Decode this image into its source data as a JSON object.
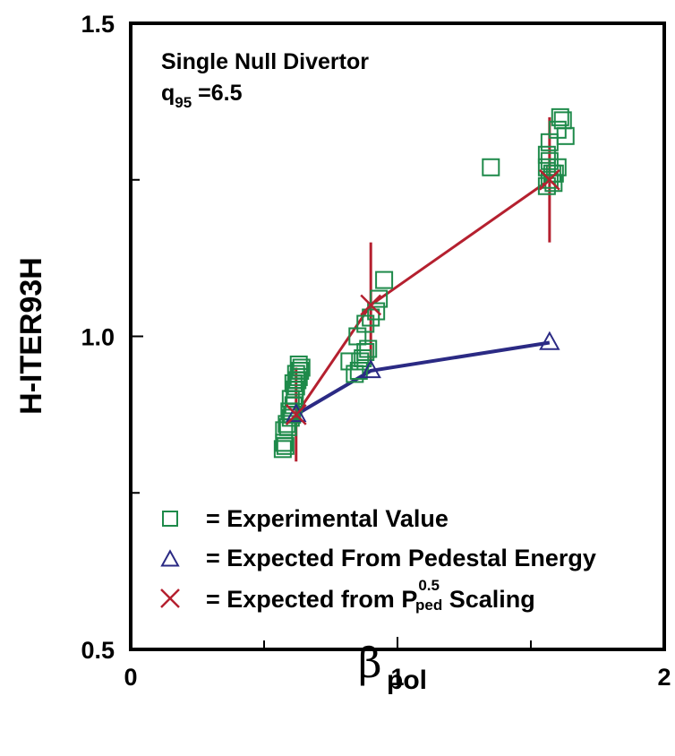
{
  "chart_data": {
    "type": "scatter",
    "xlabel": "β",
    "xlabel_subscript": "pol",
    "ylabel": "H-ITER93H",
    "xlim": [
      0,
      2
    ],
    "ylim": [
      0.5,
      1.5
    ],
    "grid": false,
    "x_tick_labels": [
      {
        "value": 0,
        "label": "0"
      },
      {
        "value": 1,
        "label": "1"
      },
      {
        "value": 2,
        "label": "2"
      }
    ],
    "x_minor_ticks": [
      0.5,
      1.5
    ],
    "y_tick_labels": [
      {
        "value": 0.5,
        "label": "0.5"
      },
      {
        "value": 1.0,
        "label": "1.0"
      },
      {
        "value": 1.5,
        "label": "1.5"
      }
    ],
    "y_minor_ticks": [
      0.75,
      1.25
    ],
    "annotations": {
      "line1": "Single Null Divertor",
      "line2_main": "q",
      "line2_sub": "95",
      "line2_rest": " =6.5"
    },
    "colors": {
      "experimental": "#1e8a4a",
      "pedestal": "#2b2a84",
      "scaling": "#b5202f"
    },
    "series": [
      {
        "name": "= Experimental Value",
        "marker": "square",
        "points": [
          [
            0.57,
            0.82
          ],
          [
            0.575,
            0.83
          ],
          [
            0.58,
            0.825
          ],
          [
            0.575,
            0.85
          ],
          [
            0.585,
            0.86
          ],
          [
            0.59,
            0.855
          ],
          [
            0.6,
            0.87
          ],
          [
            0.595,
            0.88
          ],
          [
            0.605,
            0.875
          ],
          [
            0.61,
            0.89
          ],
          [
            0.6,
            0.9
          ],
          [
            0.615,
            0.905
          ],
          [
            0.62,
            0.92
          ],
          [
            0.61,
            0.925
          ],
          [
            0.625,
            0.93
          ],
          [
            0.63,
            0.935
          ],
          [
            0.62,
            0.94
          ],
          [
            0.635,
            0.945
          ],
          [
            0.64,
            0.95
          ],
          [
            0.63,
            0.955
          ],
          [
            0.615,
            0.915
          ],
          [
            0.82,
            0.96
          ],
          [
            0.84,
            0.94
          ],
          [
            0.855,
            0.945
          ],
          [
            0.86,
            0.96
          ],
          [
            0.87,
            0.965
          ],
          [
            0.88,
            0.975
          ],
          [
            0.89,
            0.98
          ],
          [
            0.85,
            1.0
          ],
          [
            0.88,
            1.02
          ],
          [
            0.9,
            1.03
          ],
          [
            0.92,
            1.04
          ],
          [
            0.93,
            1.06
          ],
          [
            0.95,
            1.09
          ],
          [
            1.35,
            1.27
          ],
          [
            1.56,
            1.24
          ],
          [
            1.57,
            1.25
          ],
          [
            1.58,
            1.26
          ],
          [
            1.56,
            1.27
          ],
          [
            1.57,
            1.28
          ],
          [
            1.59,
            1.26
          ],
          [
            1.6,
            1.27
          ],
          [
            1.56,
            1.29
          ],
          [
            1.57,
            1.31
          ],
          [
            1.6,
            1.33
          ],
          [
            1.61,
            1.35
          ],
          [
            1.62,
            1.345
          ],
          [
            1.63,
            1.32
          ],
          [
            1.585,
            1.245
          ]
        ]
      },
      {
        "name": "= Expected From Pedestal Energy",
        "marker": "triangle",
        "points": [
          [
            0.62,
            0.875
          ],
          [
            0.9,
            0.945
          ],
          [
            1.57,
            0.99
          ]
        ]
      },
      {
        "name": "= Expected from P",
        "name_sup": "0.5",
        "name_sub": "ped",
        "name_rest": " Scaling",
        "marker": "x",
        "points": [
          [
            0.62,
            0.875
          ],
          [
            0.9,
            1.05
          ],
          [
            1.57,
            1.25
          ]
        ],
        "error_bars": [
          [
            0.8,
            0.95
          ],
          [
            0.96,
            1.15
          ],
          [
            1.15,
            1.35
          ]
        ]
      }
    ]
  }
}
